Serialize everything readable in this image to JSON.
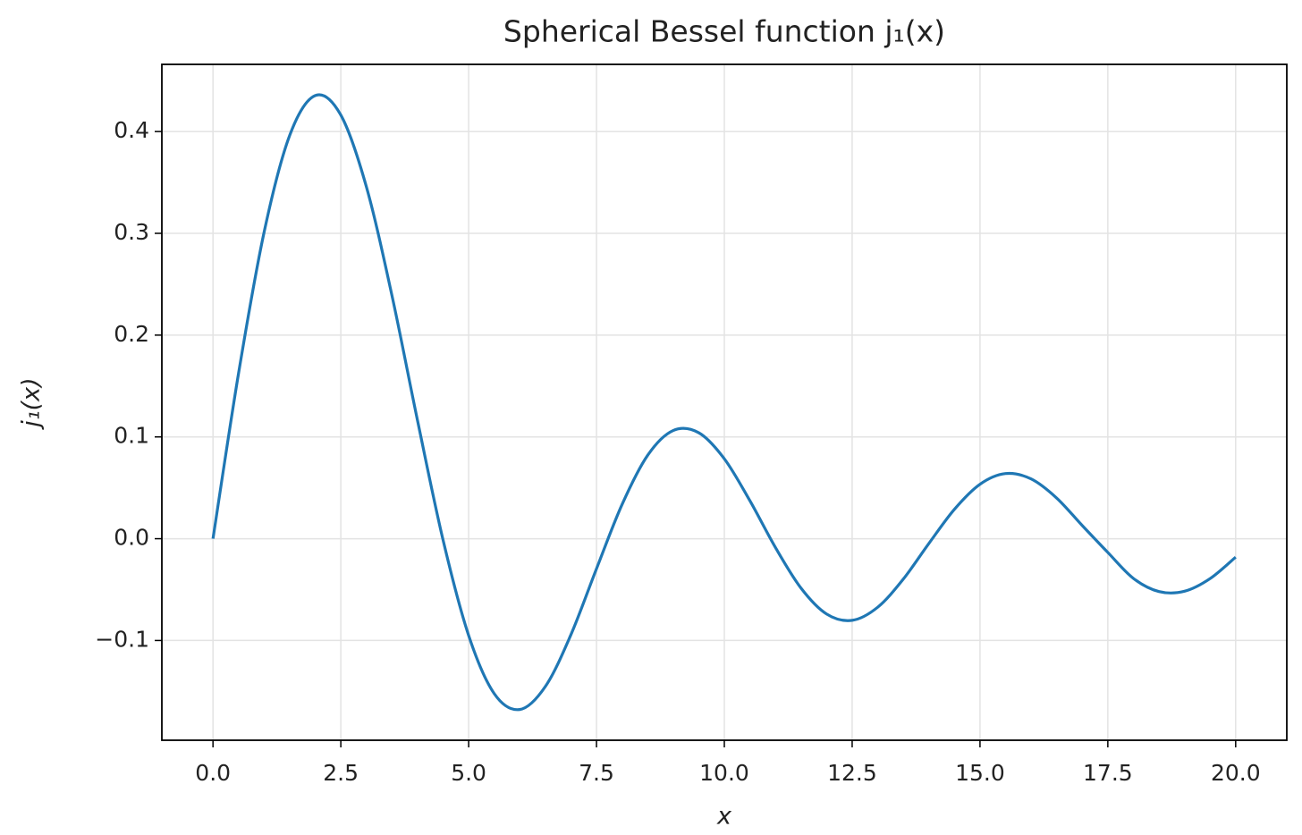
{
  "chart_data": {
    "type": "line",
    "title": "Spherical Bessel function j₁(x)",
    "xlabel": "x",
    "ylabel": "j₁(x)",
    "x": [
      0,
      0.5,
      1,
      1.5,
      2,
      2.5,
      3,
      3.5,
      4,
      4.5,
      5,
      5.5,
      6,
      6.5,
      7,
      7.5,
      8,
      8.5,
      9,
      9.5,
      10,
      10.5,
      11,
      11.5,
      12,
      12.5,
      13,
      13.5,
      14,
      14.5,
      15,
      15.5,
      16,
      16.5,
      17,
      17.5,
      18,
      18.5,
      19,
      19.5,
      20
    ],
    "series": [
      {
        "color": "#1f77b4",
        "values": [
          0,
          0.1625,
          0.3012,
          0.3962,
          0.4354,
          0.4162,
          0.3457,
          0.2389,
          0.1161,
          -0.0014,
          -0.0951,
          -0.1522,
          -0.1678,
          -0.1452,
          -0.0943,
          -0.0295,
          0.0336,
          0.0819,
          0.1063,
          0.1041,
          0.0785,
          0.0373,
          -0.0087,
          -0.0486,
          -0.074,
          -0.0802,
          -0.0673,
          -0.0397,
          -0.0047,
          0.0289,
          0.0535,
          0.064,
          0.0587,
          0.0399,
          0.0129,
          -0.0135,
          -0.039,
          -0.0519,
          -0.0516,
          -0.0392,
          -0.0181
        ]
      }
    ],
    "xlim": [
      -1.0,
      21.0
    ],
    "ylim": [
      -0.198,
      0.466
    ],
    "xticks": [
      {
        "value": 0,
        "label": "0.0"
      },
      2.5,
      {
        "value": 5,
        "label": "5.0"
      },
      7.5,
      {
        "value": 10,
        "label": "10.0"
      },
      12.5,
      {
        "value": 15,
        "label": "15.0"
      },
      17.5,
      {
        "value": 20,
        "label": "20.0"
      }
    ],
    "yticks": [
      {
        "value": -0.1,
        "label": "−0.1"
      },
      {
        "value": 0,
        "label": "0.0"
      },
      0.1,
      0.2,
      0.3,
      0.4
    ],
    "grid": true
  }
}
